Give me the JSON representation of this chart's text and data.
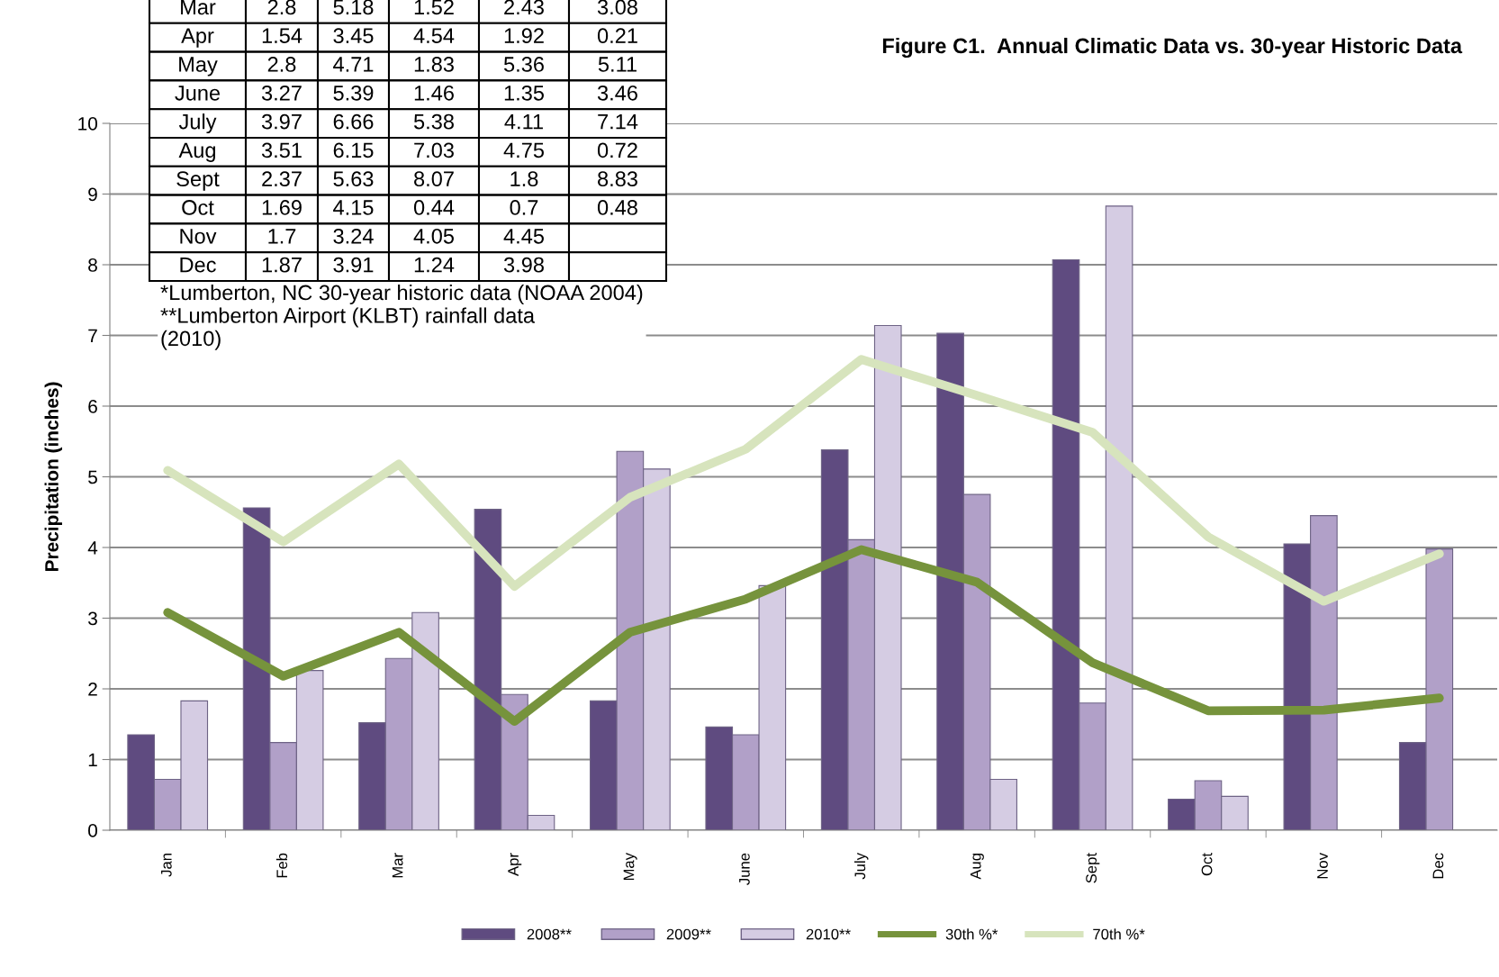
{
  "chart_data": [
    {
      "type": "bar",
      "title": "Figure C1.  Annual Climatic Data vs. 30-year Historic Data",
      "ylabel": "Precipitation (inches)",
      "categories": [
        "Jan",
        "Feb",
        "Mar",
        "Apr",
        "May",
        "June",
        "July",
        "Aug",
        "Sept",
        "Oct",
        "Nov",
        "Dec"
      ],
      "series": [
        {
          "name": "2008**",
          "type": "bar",
          "color": "#5f4b80",
          "values": [
            1.35,
            4.56,
            1.52,
            4.54,
            1.83,
            1.46,
            5.38,
            7.03,
            8.07,
            0.44,
            4.05,
            1.24
          ]
        },
        {
          "name": "2009**",
          "type": "bar",
          "color": "#b1a0c8",
          "values": [
            0.72,
            1.24,
            2.43,
            1.92,
            5.36,
            1.35,
            4.11,
            4.75,
            1.8,
            0.7,
            4.45,
            3.98
          ]
        },
        {
          "name": "2010**",
          "type": "bar",
          "color": "#d5cce3",
          "values": [
            1.83,
            2.26,
            3.08,
            0.21,
            5.11,
            3.46,
            7.14,
            0.72,
            8.83,
            0.48,
            null,
            null
          ]
        },
        {
          "name": "30th %*",
          "type": "line",
          "color": "#76933c",
          "values": [
            3.08,
            2.18,
            2.8,
            1.54,
            2.8,
            3.27,
            3.97,
            3.51,
            2.37,
            1.69,
            1.7,
            1.87
          ]
        },
        {
          "name": "70th %*",
          "type": "line",
          "color": "#d7e4bd",
          "values": [
            5.09,
            4.08,
            5.18,
            3.45,
            4.71,
            5.39,
            6.66,
            6.15,
            5.63,
            4.15,
            3.24,
            3.91
          ]
        }
      ],
      "ylim": [
        0,
        10
      ],
      "yticks": [
        0,
        1,
        2,
        3,
        4,
        5,
        6,
        7,
        8,
        9,
        10
      ],
      "grid": "y",
      "legend": "bottom",
      "marker": "none",
      "line_style": "solid",
      "annotations": [
        "*Lumberton, NC 30-year historic data (NOAA 2004)",
        "**Lumberton Airport (KLBT) rainfall data\n(2010)"
      ]
    },
    {
      "type": "other",
      "categories": [
        "Mar",
        "Apr",
        "May",
        "June",
        "July",
        "Aug",
        "Sept",
        "Oct",
        "Nov",
        "Dec"
      ],
      "data_labels": true,
      "series": [
        {
          "values": [
            2.8,
            1.54,
            2.8,
            3.27,
            3.97,
            3.51,
            2.37,
            1.69,
            1.7,
            1.87
          ]
        },
        {
          "values": [
            5.18,
            3.45,
            4.71,
            5.39,
            6.66,
            6.15,
            5.63,
            4.15,
            3.24,
            3.91
          ]
        },
        {
          "values": [
            1.52,
            4.54,
            1.83,
            1.46,
            5.38,
            7.03,
            8.07,
            0.44,
            4.05,
            1.24
          ]
        },
        {
          "values": [
            2.43,
            1.92,
            5.36,
            1.35,
            4.11,
            4.75,
            1.8,
            0.7,
            4.45,
            3.98
          ]
        },
        {
          "values": [
            3.08,
            0.21,
            5.11,
            3.46,
            7.14,
            0.72,
            8.83,
            0.48,
            null,
            null
          ]
        }
      ]
    }
  ]
}
